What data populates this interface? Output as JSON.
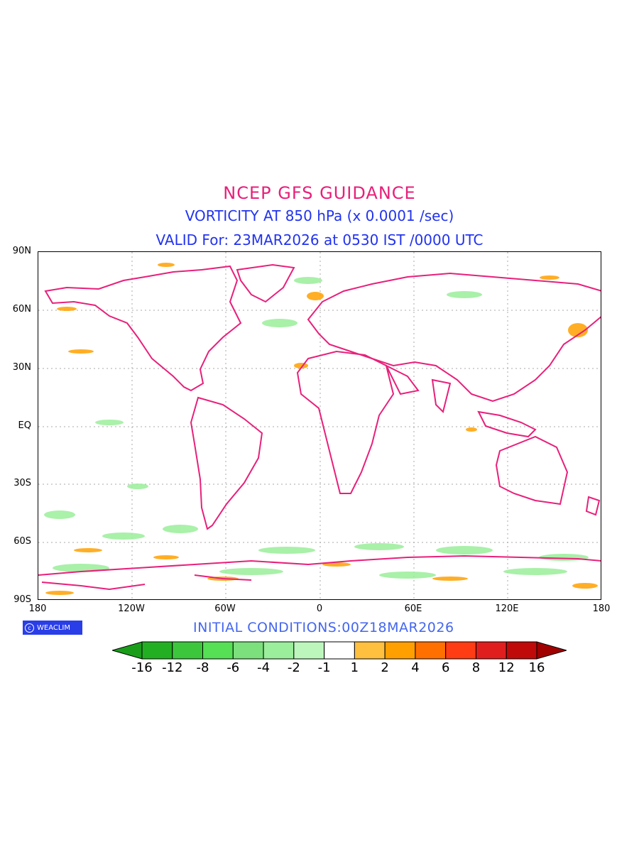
{
  "titles": {
    "line1": "NCEP GFS GUIDANCE",
    "line2": "VORTICITY AT 850 hPa (x 0.0001 /sec)",
    "line3": "VALID For: 23MAR2026 at 0530 IST /0000 UTC"
  },
  "axes": {
    "lat_labels": [
      "90N",
      "60N",
      "30N",
      "EQ",
      "30S",
      "60S",
      "90S"
    ],
    "lon_labels": [
      "180",
      "120W",
      "60W",
      "0",
      "60E",
      "120E",
      "180"
    ]
  },
  "logo": {
    "text": "WEACLIM",
    "icon": "copyright-circle-icon"
  },
  "initial_conditions": "INITIAL CONDITIONS:00Z18MAR2026",
  "colorbar": {
    "labels": [
      "-16",
      "-12",
      "-8",
      "-6",
      "-4",
      "-2",
      "-1",
      "1",
      "2",
      "4",
      "6",
      "8",
      "12",
      "16"
    ],
    "colors": [
      "#1a9e1a",
      "#22b022",
      "#3cc63c",
      "#55e055",
      "#7ce07c",
      "#9bee9b",
      "#bdf6bd",
      "#ffffff",
      "#ffc040",
      "#ffa000",
      "#ff7000",
      "#ff3c14",
      "#e01e1e",
      "#c00a0a",
      "#a00000"
    ]
  },
  "colors": {
    "coastline": "#e8207a",
    "title_red": "#e8207a",
    "title_blue": "#2233ee"
  }
}
